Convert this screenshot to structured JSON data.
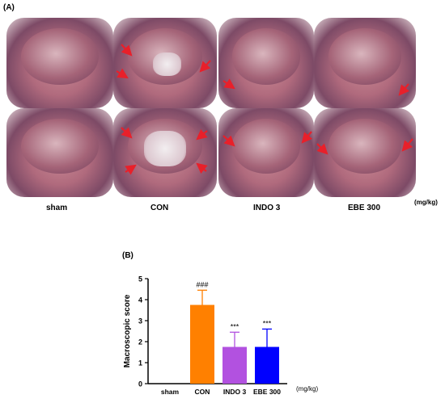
{
  "panel_a": {
    "label": "(A)",
    "groups": [
      "sham",
      "CON",
      "INDO 3",
      "EBE 300"
    ],
    "unit": "(mg/kg)"
  },
  "panel_b": {
    "label": "(B)"
  },
  "chart_data": {
    "type": "bar",
    "categories": [
      "sham",
      "CON",
      "INDO 3",
      "EBE 300"
    ],
    "values": [
      0,
      3.75,
      1.75,
      1.75
    ],
    "errors": [
      0,
      0.7,
      0.7,
      0.85
    ],
    "significance": [
      "",
      "###",
      "***",
      "***"
    ],
    "colors": [
      "#ffffff",
      "#ff8000",
      "#b251e0",
      "#0000ff"
    ],
    "ylabel": "Macroscopic score",
    "xlabel": "(mg/kg)",
    "ylim": [
      0,
      5
    ],
    "yticks": [
      0,
      1,
      2,
      3,
      4,
      5
    ]
  }
}
